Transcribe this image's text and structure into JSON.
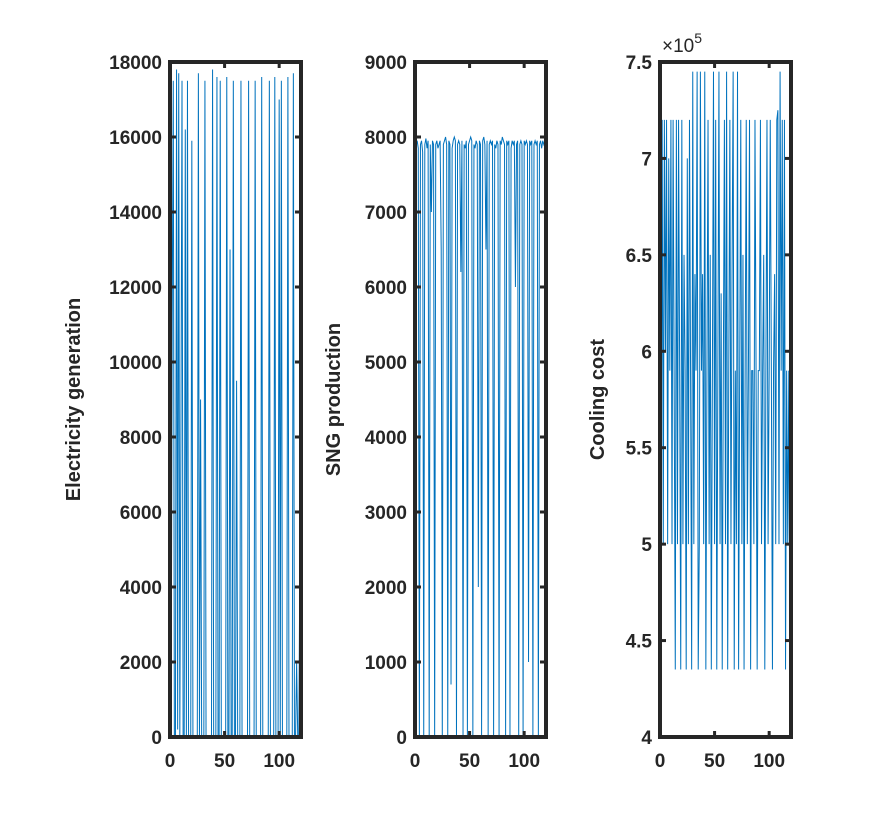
{
  "chart_data": [
    {
      "type": "line",
      "ylabel": "Electricity generation",
      "color": "#0072bd",
      "xlim": [
        0,
        120
      ],
      "xticks": [
        0,
        50,
        100
      ],
      "ylim": [
        0,
        18000
      ],
      "yticks": [
        0,
        2000,
        4000,
        6000,
        8000,
        10000,
        12000,
        14000,
        16000,
        18000
      ],
      "x": [
        1,
        2,
        3,
        4,
        5,
        6,
        7,
        8,
        9,
        10,
        11,
        12,
        13,
        14,
        15,
        16,
        17,
        18,
        19,
        20,
        21,
        22,
        23,
        24,
        25,
        26,
        27,
        28,
        29,
        30,
        31,
        32,
        33,
        34,
        35,
        36,
        37,
        38,
        39,
        40,
        41,
        42,
        43,
        44,
        45,
        46,
        47,
        48,
        49,
        50,
        51,
        52,
        53,
        54,
        55,
        56,
        57,
        58,
        59,
        60,
        61,
        62,
        63,
        64,
        65,
        66,
        67,
        68,
        69,
        70,
        71,
        72,
        73,
        74,
        75,
        76,
        77,
        78,
        79,
        80,
        81,
        82,
        83,
        84,
        85,
        86,
        87,
        88,
        89,
        90,
        91,
        92,
        93,
        94,
        95,
        96,
        97,
        98,
        99,
        100,
        101,
        102,
        103,
        104,
        105,
        106,
        107,
        108,
        109,
        110,
        111,
        112,
        113,
        114,
        115,
        116,
        117,
        118,
        119,
        120
      ],
      "values": [
        0,
        11000,
        17500,
        0,
        0,
        17800,
        200,
        17700,
        0,
        8000,
        17500,
        0,
        0,
        16200,
        0,
        17500,
        0,
        0,
        0,
        15900,
        0,
        0,
        0,
        0,
        0,
        17700,
        0,
        9000,
        0,
        0,
        0,
        17500,
        0,
        0,
        0,
        0,
        0,
        0,
        17800,
        0,
        0,
        0,
        17600,
        0,
        0,
        17500,
        0,
        0,
        0,
        0,
        0,
        17600,
        0,
        0,
        13000,
        0,
        0,
        17500,
        0,
        0,
        9500,
        0,
        0,
        0,
        17500,
        0,
        0,
        0,
        0,
        0,
        0,
        17500,
        0,
        0,
        0,
        0,
        0,
        17500,
        0,
        0,
        0,
        0,
        0,
        17600,
        0,
        0,
        0,
        0,
        0,
        0,
        17500,
        0,
        0,
        0,
        0,
        17600,
        0,
        0,
        0,
        17000,
        0,
        17500,
        0,
        0,
        0,
        0,
        0,
        17600,
        0,
        0,
        0,
        0,
        17700,
        0,
        0,
        2000,
        0,
        0,
        5000,
        17500
      ]
    },
    {
      "type": "line",
      "ylabel": "SNG production",
      "color": "#0072bd",
      "xlim": [
        0,
        120
      ],
      "xticks": [
        0,
        50,
        100
      ],
      "ylim": [
        0,
        9000
      ],
      "yticks": [
        0,
        1000,
        2000,
        3000,
        4000,
        5000,
        6000,
        7000,
        8000,
        9000
      ],
      "x": [
        1,
        2,
        3,
        4,
        5,
        6,
        7,
        8,
        9,
        10,
        11,
        12,
        13,
        14,
        15,
        16,
        17,
        18,
        19,
        20,
        21,
        22,
        23,
        24,
        25,
        26,
        27,
        28,
        29,
        30,
        31,
        32,
        33,
        34,
        35,
        36,
        37,
        38,
        39,
        40,
        41,
        42,
        43,
        44,
        45,
        46,
        47,
        48,
        49,
        50,
        51,
        52,
        53,
        54,
        55,
        56,
        57,
        58,
        59,
        60,
        61,
        62,
        63,
        64,
        65,
        66,
        67,
        68,
        69,
        70,
        71,
        72,
        73,
        74,
        75,
        76,
        77,
        78,
        79,
        80,
        81,
        82,
        83,
        84,
        85,
        86,
        87,
        88,
        89,
        90,
        91,
        92,
        93,
        94,
        95,
        96,
        97,
        98,
        99,
        100,
        101,
        102,
        103,
        104,
        105,
        106,
        107,
        108,
        109,
        110,
        111,
        112,
        113,
        114,
        115,
        116,
        117,
        118,
        119,
        120
      ],
      "values": [
        7900,
        7950,
        7850,
        0,
        7900,
        7950,
        7800,
        0,
        7900,
        7980,
        7850,
        7950,
        0,
        7900,
        7000,
        7950,
        7900,
        0,
        7900,
        7950,
        7850,
        7900,
        7950,
        6500,
        0,
        7900,
        7950,
        8000,
        7900,
        0,
        7950,
        7900,
        700,
        7850,
        7950,
        8000,
        7950,
        0,
        7900,
        7950,
        7900,
        6200,
        7950,
        0,
        7900,
        7850,
        7950,
        0,
        7900,
        7950,
        8000,
        7950,
        0,
        7900,
        7850,
        7950,
        7900,
        2000,
        7950,
        7900,
        0,
        7950,
        8000,
        7900,
        6500,
        7950,
        0,
        7900,
        7950,
        7900,
        7950,
        0,
        7900,
        7850,
        7950,
        7900,
        0,
        7950,
        7900,
        8000,
        7950,
        7900,
        0,
        7950,
        7900,
        7950,
        0,
        7850,
        7950,
        7900,
        7950,
        6000,
        7900,
        7950,
        0,
        7900,
        7950,
        7900,
        0,
        7950,
        7900,
        7950,
        7900,
        1000,
        7950,
        7900,
        7950,
        0,
        7900,
        7950,
        7900,
        7950,
        0,
        7900,
        7950,
        7850,
        7950,
        7900,
        7950,
        5200
      ]
    },
    {
      "type": "line",
      "ylabel": "Cooling cost",
      "color": "#0072bd",
      "axis_multiplier": {
        "base": "×10",
        "exponent": "5"
      },
      "xlim": [
        0,
        120
      ],
      "xticks": [
        0,
        50,
        100
      ],
      "ylim": [
        4,
        7.5
      ],
      "yticks": [
        4,
        4.5,
        5,
        5.5,
        6,
        6.5,
        7,
        7.5
      ],
      "x": [
        1,
        2,
        3,
        4,
        5,
        6,
        7,
        8,
        9,
        10,
        11,
        12,
        13,
        14,
        15,
        16,
        17,
        18,
        19,
        20,
        21,
        22,
        23,
        24,
        25,
        26,
        27,
        28,
        29,
        30,
        31,
        32,
        33,
        34,
        35,
        36,
        37,
        38,
        39,
        40,
        41,
        42,
        43,
        44,
        45,
        46,
        47,
        48,
        49,
        50,
        51,
        52,
        53,
        54,
        55,
        56,
        57,
        58,
        59,
        60,
        61,
        62,
        63,
        64,
        65,
        66,
        67,
        68,
        69,
        70,
        71,
        72,
        73,
        74,
        75,
        76,
        77,
        78,
        79,
        80,
        81,
        82,
        83,
        84,
        85,
        86,
        87,
        88,
        89,
        90,
        91,
        92,
        93,
        94,
        95,
        96,
        97,
        98,
        99,
        100,
        101,
        102,
        103,
        104,
        105,
        106,
        107,
        108,
        109,
        110,
        111,
        112,
        113,
        114,
        115,
        116,
        117,
        118,
        119,
        120
      ],
      "values": [
        5.0,
        7.2,
        5.0,
        7.2,
        6.0,
        7.2,
        5.0,
        7.0,
        5.9,
        7.2,
        5.0,
        7.2,
        5.8,
        4.35,
        7.2,
        5.0,
        7.2,
        5.9,
        4.35,
        7.2,
        5.0,
        6.5,
        5.9,
        4.35,
        7.0,
        5.0,
        7.2,
        5.9,
        4.35,
        7.45,
        5.0,
        6.4,
        5.9,
        7.45,
        4.35,
        5.0,
        7.45,
        5.9,
        6.4,
        5.0,
        7.45,
        4.35,
        5.9,
        7.2,
        5.0,
        6.5,
        4.35,
        5.9,
        7.45,
        5.0,
        7.2,
        4.35,
        5.9,
        7.45,
        5.0,
        6.3,
        4.35,
        5.9,
        7.2,
        5.0,
        7.45,
        4.35,
        5.9,
        7.2,
        5.0,
        6.4,
        7.45,
        4.35,
        5.9,
        5.0,
        7.45,
        4.35,
        5.9,
        7.2,
        5.0,
        6.5,
        4.35,
        5.9,
        7.2,
        5.0,
        5.9,
        7.2,
        4.35,
        5.9,
        5.9,
        5.0,
        7.2,
        5.9,
        4.35,
        5.9,
        5.9,
        7.2,
        5.0,
        5.9,
        6.5,
        4.35,
        5.9,
        7.2,
        5.0,
        5.9,
        7.2,
        5.9,
        4.35,
        5.9,
        6.4,
        5.0,
        7.2,
        7.25,
        5.0,
        7.45,
        5.9,
        7.2,
        5.0,
        7.2,
        4.35,
        5.9,
        5.0,
        5.9,
        4.35,
        5.9
      ]
    }
  ]
}
